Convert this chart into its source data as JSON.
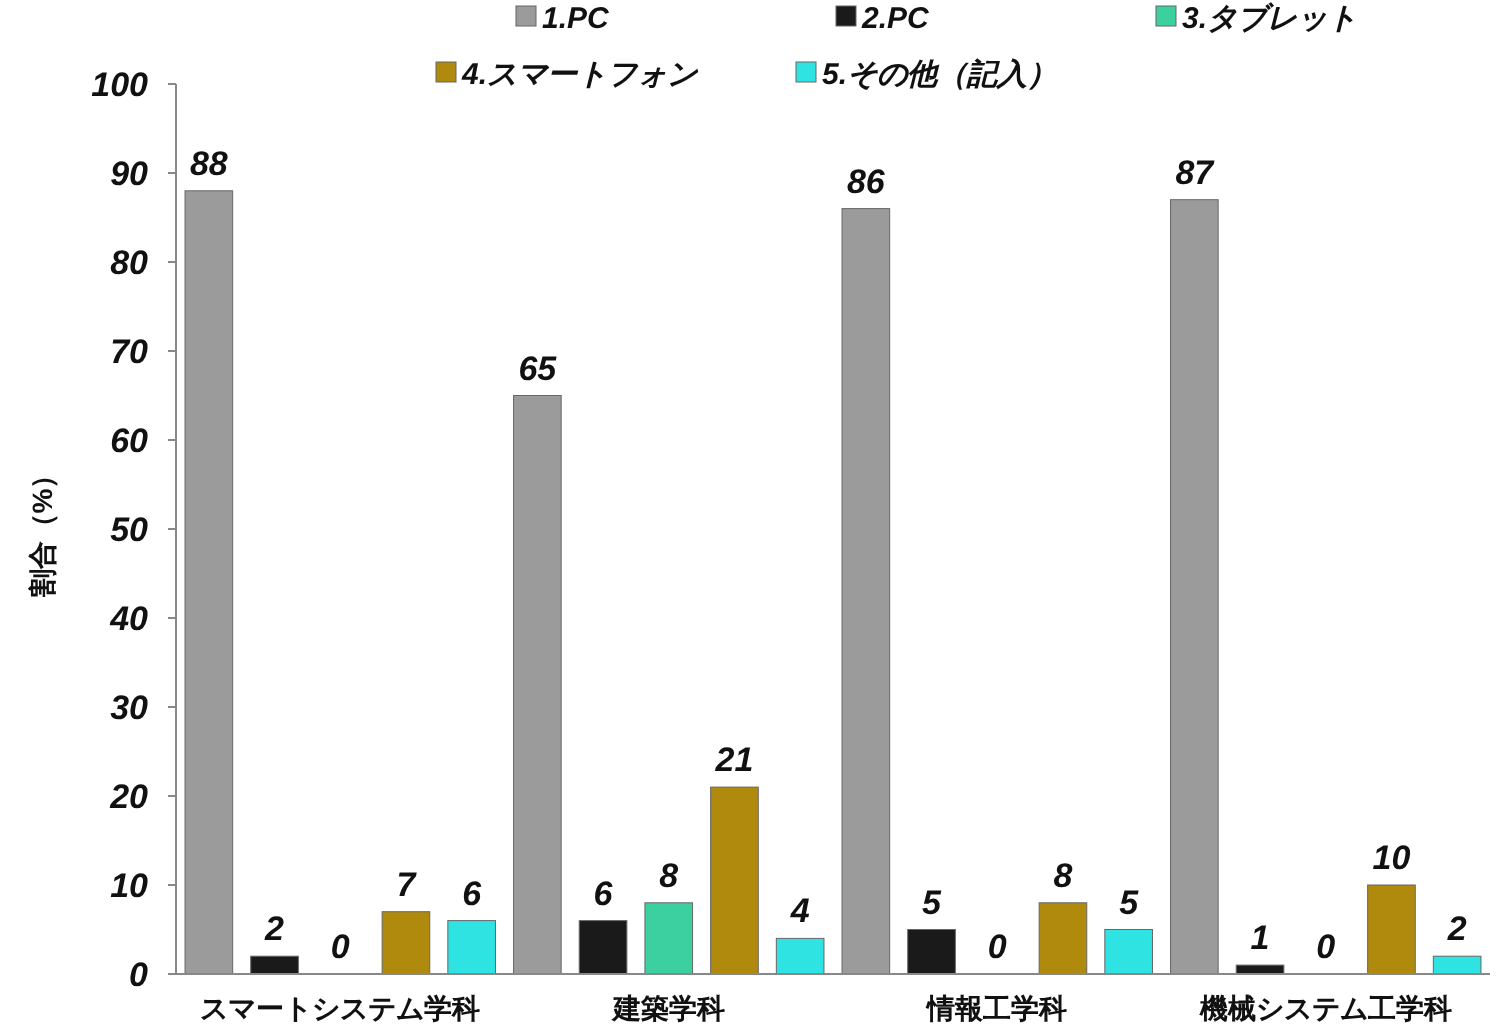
{
  "chart_data": {
    "type": "bar",
    "ylabel": "割合（%）",
    "categories": [
      "スマートシステム学科",
      "建築学科",
      "情報工学科",
      "機械システム工学科"
    ],
    "series": [
      {
        "name": "1.PC",
        "color": "#9b9b9b",
        "values": [
          88,
          65,
          86,
          87
        ]
      },
      {
        "name": "2.PC",
        "color": "#1a1a1a",
        "values": [
          2,
          6,
          5,
          1
        ]
      },
      {
        "name": "3.タブレット",
        "color": "#3ccf9f",
        "values": [
          0,
          8,
          0,
          0
        ]
      },
      {
        "name": "4.スマートフォン",
        "color": "#b08a0c",
        "values": [
          7,
          21,
          8,
          10
        ]
      },
      {
        "name": "5.その他（記入）",
        "color": "#2fe3e3",
        "values": [
          6,
          4,
          5,
          2
        ]
      }
    ],
    "ylim": [
      0,
      100
    ],
    "yticks": [
      0,
      10,
      20,
      30,
      40,
      50,
      60,
      70,
      80,
      90,
      100
    ],
    "data_labels": true,
    "legend": "top",
    "grid": false
  }
}
